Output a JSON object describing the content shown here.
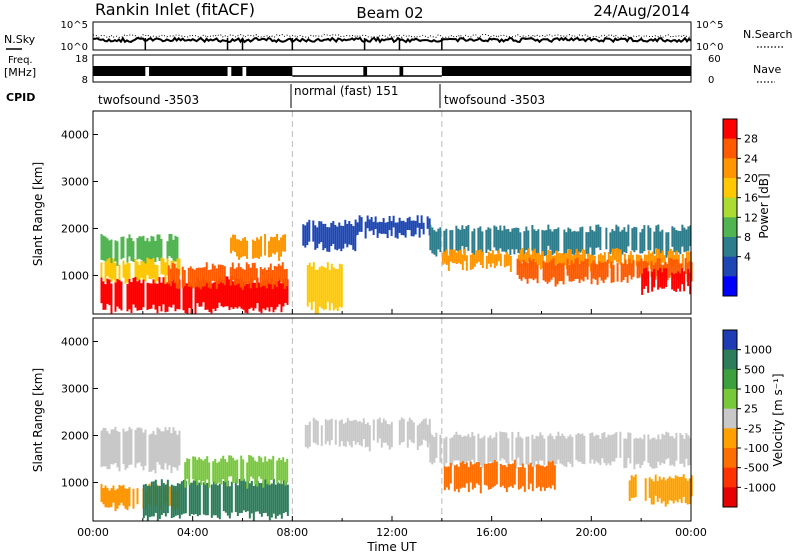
{
  "header": {
    "station": "Rankin Inlet (fitACF)",
    "beam": "Beam 02",
    "date": "24/Aug/2014"
  },
  "nsky_panel": {
    "left_label": "N.Sky",
    "left_ticks": [
      "10^5",
      "10^0"
    ],
    "right_label": "N.Search",
    "right_ticks": [
      "10^5",
      "10^0"
    ]
  },
  "freq_panel": {
    "left_label_line1": "Freq.",
    "left_label_line2": "[MHz]",
    "left_ticks": [
      "18",
      "8"
    ],
    "right_label": "Nave",
    "right_ticks": [
      "60",
      "0"
    ]
  },
  "cpid": {
    "label": "CPID",
    "segments": [
      "twofsound -3503",
      "normal (fast) 151",
      "twofsound -3503"
    ]
  },
  "x_axis": {
    "label": "Time UT",
    "ticks": [
      "00:00",
      "04:00",
      "08:00",
      "12:00",
      "16:00",
      "20:00",
      "00:00"
    ]
  },
  "y_axis": {
    "label": "Slant Range [km]",
    "ticks": [
      "1000",
      "2000",
      "3000",
      "4000"
    ]
  },
  "power_colorbar": {
    "label": "Power [dB]",
    "ticks": [
      "28",
      "24",
      "20",
      "16",
      "12",
      "8",
      "4"
    ],
    "colors": [
      "#ff0000",
      "#ff5a00",
      "#ff9600",
      "#ffc800",
      "#aadc32",
      "#50b450",
      "#2d7d8c",
      "#1e46b4",
      "#0000ff"
    ]
  },
  "velocity_colorbar": {
    "label": "Velocity [m s⁻¹]",
    "ticks": [
      "1000",
      "500",
      "100",
      "25",
      "-25",
      "-100",
      "-500",
      "-1000"
    ],
    "colors": [
      "#1e3cb4",
      "#2d7d5a",
      "#3ca03c",
      "#78c83c",
      "#c8c8c8",
      "#ffa000",
      "#ff6e00",
      "#ff3200",
      "#e60000"
    ]
  },
  "chart_data": [
    {
      "type": "heatmap",
      "title": "Power",
      "x_range_hours": [
        0,
        24
      ],
      "y_range_km": [
        180,
        4500
      ],
      "bands": [
        {
          "t0": 0.3,
          "t1": 3.5,
          "r0": 1300,
          "r1": 1800,
          "color": "#50b450"
        },
        {
          "t0": 0.3,
          "t1": 3.5,
          "r0": 900,
          "r1": 1300,
          "color": "#ffc800"
        },
        {
          "t0": 0.3,
          "t1": 7.8,
          "r0": 300,
          "r1": 900,
          "color": "#ff0000"
        },
        {
          "t0": 3.0,
          "t1": 7.8,
          "r0": 800,
          "r1": 1200,
          "color": "#ff5a00"
        },
        {
          "t0": 5.5,
          "t1": 7.8,
          "r0": 1400,
          "r1": 1800,
          "color": "#ff9600"
        },
        {
          "t0": 8.4,
          "t1": 10.5,
          "r0": 1600,
          "r1": 2100,
          "color": "#1e46b4"
        },
        {
          "t0": 8.5,
          "t1": 10.0,
          "r0": 300,
          "r1": 1200,
          "color": "#ffc800"
        },
        {
          "t0": 10.5,
          "t1": 13.5,
          "r0": 1900,
          "r1": 2200,
          "color": "#1e46b4"
        },
        {
          "t0": 13.5,
          "t1": 24.0,
          "r0": 1500,
          "r1": 2000,
          "color": "#2d7d8c"
        },
        {
          "t0": 14.0,
          "t1": 24.0,
          "r0": 1200,
          "r1": 1500,
          "color": "#ff9600"
        },
        {
          "t0": 17.0,
          "t1": 24.0,
          "r0": 900,
          "r1": 1300,
          "color": "#ff5a00"
        },
        {
          "t0": 22.0,
          "t1": 24.0,
          "r0": 700,
          "r1": 1100,
          "color": "#ff0000"
        }
      ]
    },
    {
      "type": "heatmap",
      "title": "Velocity",
      "x_range_hours": [
        0,
        24
      ],
      "y_range_km": [
        180,
        4500
      ],
      "bands": [
        {
          "t0": 0.3,
          "t1": 3.5,
          "r0": 1300,
          "r1": 2100,
          "color": "#c8c8c8"
        },
        {
          "t0": 0.3,
          "t1": 3.5,
          "r0": 500,
          "r1": 900,
          "color": "#ff9600"
        },
        {
          "t0": 2.0,
          "t1": 7.8,
          "r0": 300,
          "r1": 1000,
          "color": "#2d7d5a"
        },
        {
          "t0": 3.5,
          "t1": 7.8,
          "r0": 1000,
          "r1": 1500,
          "color": "#78c83c"
        },
        {
          "t0": 8.5,
          "t1": 13.5,
          "r0": 1800,
          "r1": 2300,
          "color": "#c8c8c8"
        },
        {
          "t0": 13.5,
          "t1": 24.0,
          "r0": 1400,
          "r1": 2000,
          "color": "#c8c8c8"
        },
        {
          "t0": 14.0,
          "t1": 18.5,
          "r0": 900,
          "r1": 1400,
          "color": "#ff6e00"
        },
        {
          "t0": 21.5,
          "t1": 24.0,
          "r0": 600,
          "r1": 1100,
          "color": "#ffa000"
        }
      ]
    }
  ]
}
